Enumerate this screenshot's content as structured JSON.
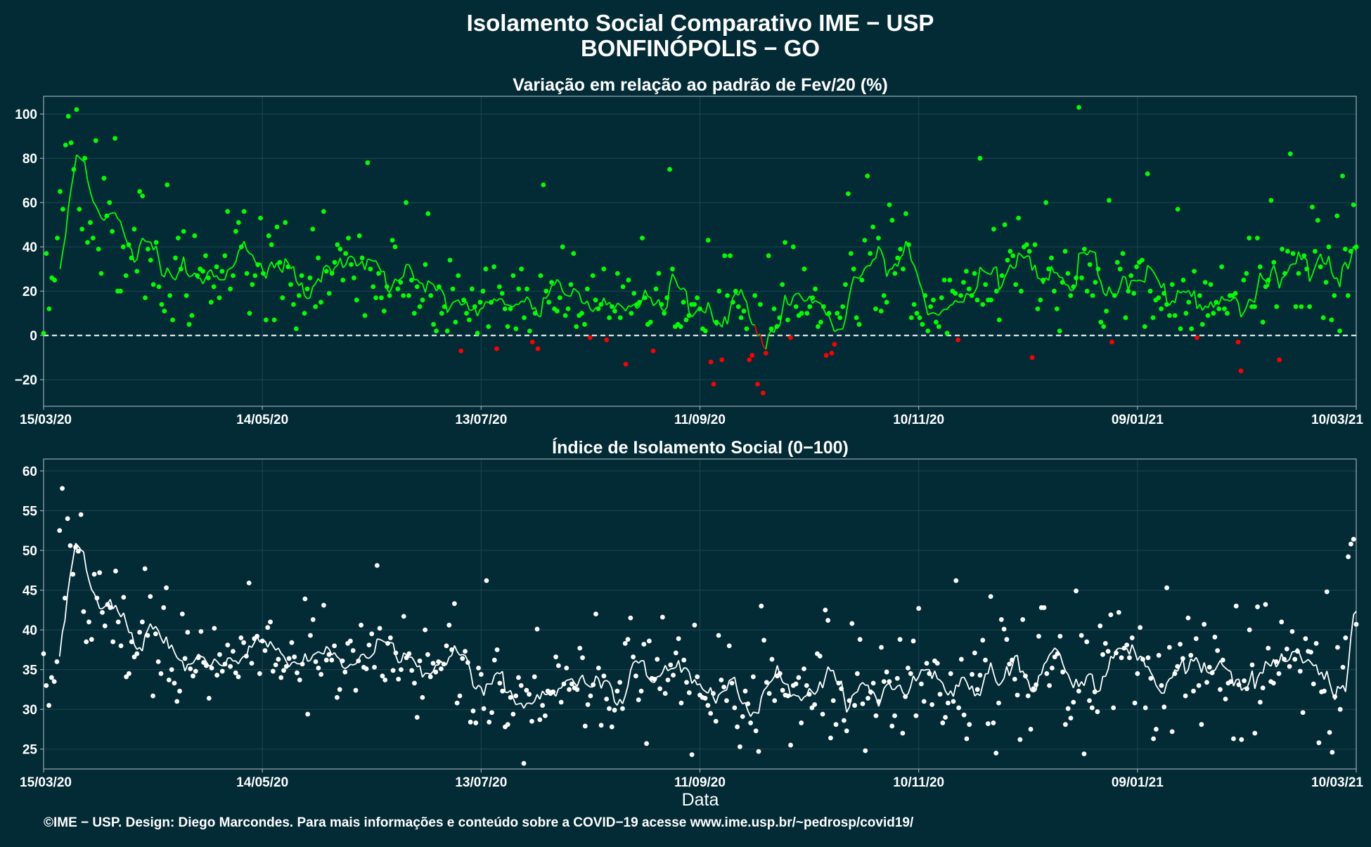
{
  "header": {
    "title": "Isolamento Social Comparativo IME − USP",
    "subtitle": "BONFINÓPOLIS − GO"
  },
  "footer": {
    "xlabel": "Data",
    "credit": "©IME − USP. Design: Diego Marcondes. Para mais informações e conteúdo sobre a COVID−19 acesse www.ime.usp.br/~pedrosp/covid19/"
  },
  "colors": {
    "background": "#022b36",
    "positive": "#00ff00",
    "negative": "#ff0000",
    "index": "#ffffff",
    "axis": "#9aaab0",
    "grid": "#1e4652"
  },
  "chart_data": [
    {
      "type": "scatter",
      "title": "Variação em relação ao padrão de Fev/20 (%)",
      "xlabel": "",
      "ylabel": "",
      "x_range_days": [
        0,
        360
      ],
      "x_ticks": [
        "15/03/20",
        "14/05/20",
        "13/07/20",
        "11/09/20",
        "10/11/20",
        "09/01/21",
        "10/03/21"
      ],
      "x_tick_days": [
        0,
        60,
        120,
        180,
        240,
        300,
        360
      ],
      "ylim": [
        -32,
        108
      ],
      "y_ticks": [
        -20,
        0,
        20,
        40,
        60,
        80,
        100
      ],
      "reference_line": 0,
      "values": [
        1,
        37,
        12,
        26,
        25,
        44,
        65,
        57,
        86,
        99,
        87,
        75,
        102,
        57,
        48,
        80,
        42,
        51,
        44,
        88,
        39,
        28,
        71,
        54,
        60,
        47,
        89,
        20,
        20,
        40,
        27,
        41,
        35,
        48,
        29,
        65,
        63,
        17,
        39,
        34,
        23,
        42,
        22,
        14,
        11,
        68,
        18,
        7,
        35,
        44,
        30,
        47,
        18,
        5,
        9,
        45,
        27,
        30,
        29,
        36,
        26,
        15,
        22,
        31,
        17,
        29,
        36,
        56,
        21,
        27,
        47,
        51,
        40,
        56,
        28,
        10,
        23,
        27,
        32,
        53,
        28,
        7,
        45,
        41,
        7,
        49,
        33,
        17,
        51,
        31,
        23,
        14,
        3,
        18,
        27,
        10,
        21,
        26,
        48,
        13,
        35,
        15,
        56,
        29,
        19,
        28,
        33,
        41,
        39,
        25,
        37,
        44,
        32,
        26,
        16,
        45,
        35,
        9,
        78,
        30,
        22,
        17,
        28,
        17,
        11,
        22,
        18,
        43,
        40,
        21,
        24,
        18,
        60,
        18,
        25,
        10,
        22,
        13,
        16,
        32,
        55,
        18,
        5,
        2,
        22,
        10,
        13,
        2,
        34,
        21,
        6,
        27,
        -7,
        16,
        10,
        7,
        21,
        13,
        1,
        15,
        20,
        30,
        4,
        15,
        31,
        -6,
        22,
        19,
        12,
        4,
        12,
        27,
        3,
        21,
        30,
        8,
        21,
        2,
        -3,
        10,
        -6,
        27,
        68,
        20,
        15,
        24,
        12,
        11,
        17,
        40,
        9,
        12,
        23,
        37,
        4,
        9,
        10,
        5,
        21,
        -1,
        27,
        16,
        12,
        14,
        30,
        -2,
        8,
        13,
        11,
        28,
        8,
        22,
        -13,
        25,
        10,
        19,
        14,
        15,
        44,
        17,
        5,
        6,
        -7,
        21,
        28,
        14,
        10,
        17,
        75,
        30,
        4,
        5,
        4,
        15,
        7,
        9,
        14,
        14,
        17,
        12,
        3,
        2,
        43,
        -12,
        -22,
        6,
        20,
        -11,
        36,
        18,
        36,
        15,
        20,
        13,
        8,
        11,
        3,
        -11,
        -9,
        18,
        -22,
        14,
        -26,
        -8,
        36,
        3,
        12,
        4,
        8,
        23,
        42,
        7,
        -1,
        40,
        13,
        9,
        10,
        30,
        10,
        13,
        17,
        21,
        4,
        6,
        13,
        -9,
        10,
        -8,
        -4,
        10,
        8,
        13,
        23,
        64,
        37,
        30,
        8,
        5,
        25,
        43,
        72,
        37,
        49,
        12,
        44,
        11,
        18,
        15,
        59,
        52,
        28,
        35,
        39,
        30,
        55,
        41,
        8,
        14,
        10,
        8,
        5,
        18,
        2,
        13,
        16,
        6,
        4,
        17,
        25,
        1,
        25,
        20,
        19,
        -2,
        18,
        24,
        29,
        21,
        18,
        28,
        16,
        80,
        14,
        23,
        16,
        16,
        48,
        20,
        7,
        27,
        50,
        34,
        38,
        36,
        23,
        53,
        20,
        40,
        41,
        38,
        -10,
        41,
        12,
        16,
        25,
        60,
        30,
        35,
        20,
        12,
        2,
        24,
        38,
        28,
        18,
        22,
        26,
        103,
        26,
        39,
        20,
        32,
        18,
        24,
        30,
        6,
        4,
        11,
        61,
        -3,
        18,
        33,
        30,
        37,
        8,
        20,
        27,
        19,
        31,
        33,
        34,
        4,
        73,
        20,
        8,
        16,
        17,
        12,
        19,
        14,
        9,
        23,
        9,
        57,
        3,
        25,
        10,
        15,
        3,
        29,
        -1,
        18,
        5,
        24,
        9,
        23,
        10,
        15,
        12,
        31,
        12,
        10,
        18,
        18,
        19,
        -3,
        -16,
        25,
        28,
        44,
        13,
        13,
        44,
        31,
        6,
        22,
        25,
        61,
        33,
        13,
        -11,
        39,
        28,
        38,
        82,
        37,
        13,
        28,
        13,
        36,
        30,
        13,
        58,
        38,
        52,
        31,
        8,
        24,
        40,
        7,
        18,
        54,
        2,
        72,
        39,
        18,
        38,
        59,
        40
      ]
    },
    {
      "type": "scatter",
      "title": "Índice de Isolamento Social (0−100)",
      "xlabel": "Data",
      "ylabel": "",
      "x_range_days": [
        0,
        360
      ],
      "x_ticks": [
        "15/03/20",
        "14/05/20",
        "13/07/20",
        "11/09/20",
        "10/11/20",
        "09/01/21",
        "10/03/21"
      ],
      "x_tick_days": [
        0,
        60,
        120,
        180,
        240,
        300,
        360
      ],
      "ylim": [
        22.5,
        61.5
      ],
      "y_ticks": [
        25,
        30,
        35,
        40,
        45,
        50,
        55,
        60
      ],
      "values": [
        37,
        33,
        30.5,
        34,
        33.5,
        36,
        52.5,
        57.8,
        44,
        54,
        50.6,
        47,
        50.4,
        49.9,
        54.5,
        42.3,
        38.5,
        41,
        38.8,
        47,
        44,
        47.2,
        42.2,
        40.5,
        43.2,
        42.8,
        38.5,
        47.4,
        41,
        38,
        44.1,
        34.1,
        34.5,
        38.5,
        36.6,
        37,
        39.7,
        41,
        47.7,
        39.3,
        44.2,
        31.7,
        39.5,
        36,
        34.5,
        42.8,
        45.3,
        33.7,
        35,
        33.3,
        31,
        32.3,
        42,
        36.4,
        39.7,
        35.1,
        34.2,
        34.8,
        36.5,
        39.8,
        35.9,
        35.5,
        31.4,
        35.2,
        40.2,
        34.3,
        36.9,
        34.8,
        35.7,
        38.1,
        35.4,
        37.3,
        34.6,
        34.1,
        39,
        38.4,
        36.7,
        45.9,
        35.8,
        38.9,
        39.2,
        34.5,
        38.6,
        37.4,
        40.3,
        41,
        34.8,
        35.6,
        36.3,
        34,
        34.9,
        35.4,
        36.4,
        38.4,
        36.6,
        34.6,
        33.7,
        35.7,
        43.9,
        29.4,
        39.3,
        41.3,
        36,
        35.2,
        34.4,
        43.1,
        36.2,
        36.9,
        36.2,
        38,
        31.5,
        32.5,
        36.1,
        34.7,
        38.3,
        38.6,
        37.4,
        32.4,
        36.1,
        40.6,
        35.3,
        35.1,
        38.1,
        39.5,
        35.3,
        48.1,
        40.2,
        34.2,
        33.7,
        38.3,
        39,
        34.9,
        37.1,
        33.8,
        35,
        41.7,
        36.5,
        37,
        34.9,
        33.3,
        29,
        36.1,
        31.5,
        40,
        36.9,
        34.1,
        35.8,
        34.7,
        36,
        35.1,
        35.7,
        38,
        40.6,
        37.5,
        43.3,
        30.8,
        31.7,
        36.4,
        37.3,
        35.9,
        28.4,
        29.8,
        28.3,
        35.2,
        34.4,
        30.1,
        46.2,
        28.4,
        29.6,
        36.2,
        37.5,
        33.3,
        32.3,
        27.8,
        28.1,
        31.5,
        29.4,
        31.7,
        34,
        33,
        23.2,
        32.4,
        31.9,
        28.5,
        34.1,
        40.1,
        28.7,
        30.5,
        29.2,
        32.3,
        32,
        32.2,
        36.6,
        35.5,
        30.9,
        33.2,
        35.2,
        32.5,
        33.2,
        32.7,
        32.5,
        37.7,
        36.5,
        27.9,
        30.6,
        31.7,
        33.1,
        42,
        35.2,
        28,
        34.2,
        31.3,
        30.1,
        27.8,
        29.9,
        32.3,
        33.4,
        30.1,
        38.3,
        38.8,
        41.5,
        36.6,
        34.2,
        31.2,
        32.3,
        38.2,
        25.7,
        38.6,
        33.9,
        33.8,
        36.3,
        32.6,
        41.6,
        32,
        33.7,
        35.6,
        34.3,
        37.1,
        38.9,
        30.8,
        36.2,
        33.4,
        32.1,
        24.3,
        40.6,
        34.1,
        31.8,
        31.5,
        31.4,
        30.5,
        29.5,
        32,
        28.5,
        39.3,
        33.7,
        32.8,
        31.1,
        38,
        33.3,
        30.2,
        27.8,
        25.3,
        29.1,
        32.3,
        30.7,
        28.3,
        34.1,
        27.3,
        24.7,
        43,
        38.7,
        33.4,
        32,
        36.3,
        31.1,
        34.2,
        34.5,
        32.4,
        31.8,
        31.7,
        25.5,
        33,
        33.2,
        34,
        28.3,
        35.1,
        33,
        31.9,
        30.2,
        30.6,
        37,
        36.7,
        29.4,
        42.5,
        41.2,
        26.4,
        31.1,
        28.1,
        33.3,
        32.6,
        28.6,
        27.3,
        31.1,
        40.8,
        30.5,
        34.5,
        38.8,
        30.7,
        24.8,
        31.4,
        32.2,
        33.3,
        29.2,
        31,
        37.8,
        33.5,
        34.7,
        33.5,
        27.9,
        29.2,
        33.9,
        38.8,
        27,
        31.6,
        35.2,
        34.5,
        38.6,
        29.2,
        42.7,
        33.2,
        31,
        35.8,
        34.5,
        30.6,
        36.1,
        35.8,
        31.9,
        28.3,
        29,
        30.8,
        34.5,
        31,
        46.2,
        30.2,
        36.3,
        29.3,
        26.3,
        28.1,
        34.4,
        37.1,
        32.5,
        34.3,
        38.7,
        36.2,
        28.2,
        44.2,
        28.3,
        24.5,
        30.8,
        41.3,
        40.1,
        38.8,
        35.7,
        36.2,
        33.8,
        31.8,
        26.2,
        41.3,
        34.2,
        31.7,
        27.5,
        32.6,
        33.1,
        39.2,
        42.8,
        42.8,
        34.5,
        33,
        35.2,
        36.6,
        37,
        39.2,
        34.7,
        28.1,
        30.1,
        28.9,
        30.9,
        44.9,
        32.3,
        39.3,
        24.4,
        38.5,
        31.1,
        30.2,
        32.2,
        29.7,
        40.5,
        36.9,
        38.3,
        37.3,
        41.9,
        30.2,
        37.1,
        42.2,
        36.5,
        37.7,
        38.1,
        36.5,
        39,
        30.8,
        34.5,
        40.3,
        36.3,
        30.2,
        36.5,
        33.9,
        26.3,
        27.5,
        36.8,
        33,
        30.3,
        45.3,
        37.8,
        27.2,
        34.5,
        35.4,
        38.2,
        36.4,
        31.7,
        41.5,
        36.8,
        32.3,
        38.9,
        33,
        28.1,
        40.7,
        33.4,
        35.3,
        34.6,
        39.1,
        37.4,
        32.5,
        36.2,
        31.3,
        33.3,
        33.5,
        26.3,
        43,
        33.1,
        26.2,
        33.6,
        32.6,
        40,
        35.6,
        27,
        42.9,
        30.9,
        32.7,
        43.2,
        37.7,
        33.5,
        33.3,
        36,
        34.5,
        41,
        36.3,
        37.6,
        35.4,
        39.8,
        36.3,
        37.3,
        34.8,
        29.6,
        38.9,
        37.3,
        37.2,
        33.2,
        38.3,
        25.8,
        32.2,
        32.3,
        44.8,
        27.1,
        24.6,
        31.6,
        37.8,
        30,
        35.3,
        39,
        49.2,
        50.8,
        51.4,
        40.7
      ]
    }
  ]
}
